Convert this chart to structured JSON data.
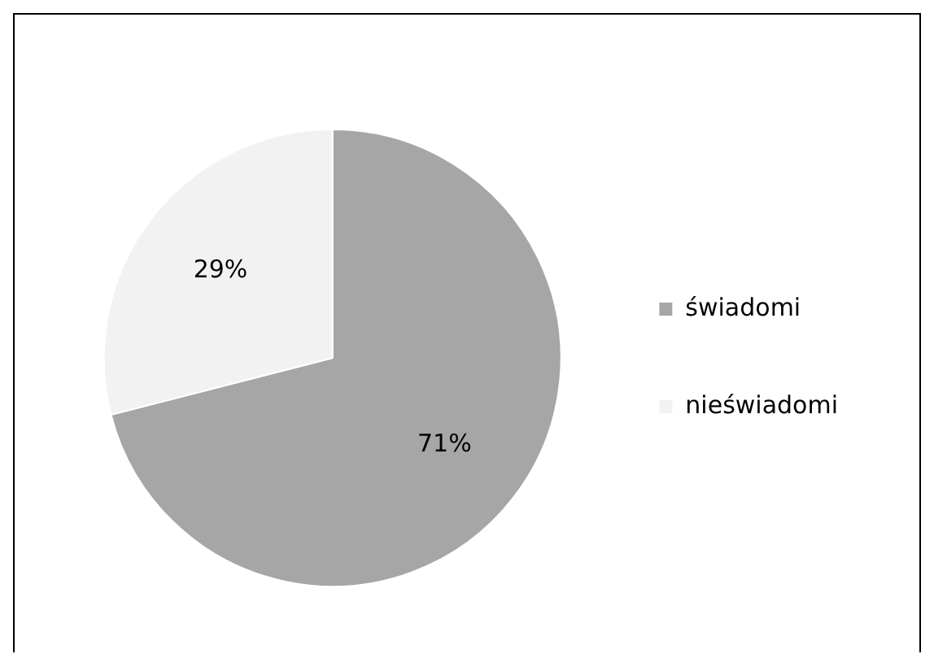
{
  "chart_data": {
    "type": "pie",
    "categories": [
      "świadomi",
      "nieświadomi"
    ],
    "values": [
      71,
      29
    ],
    "colors": [
      "#a6a6a6",
      "#f2f2f2"
    ],
    "value_labels": [
      "71%",
      "29%"
    ],
    "legend": "right"
  }
}
